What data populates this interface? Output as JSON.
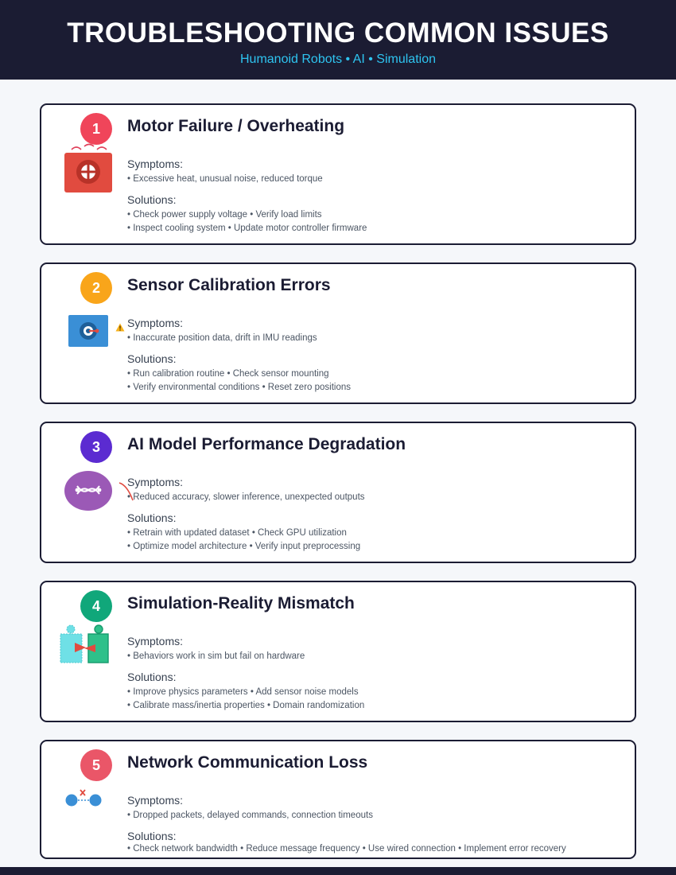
{
  "header": {
    "title": "TROUBLESHOOTING COMMON ISSUES",
    "subtitle": "Humanoid Robots • AI • Simulation"
  },
  "colors": {
    "header_bg": "#1b1c33",
    "subtitle": "#2ec4f0",
    "badge_1": "#f0455a",
    "badge_2": "#f9a51a",
    "badge_3": "#5b2bd1",
    "badge_4": "#10a77a",
    "badge_5": "#ea5668"
  },
  "issues": [
    {
      "number": "1",
      "title": "Motor Failure / Overheating",
      "icon": "motor-icon",
      "symptoms_label": "Symptoms:",
      "symptoms": "• Excessive heat, unusual noise, reduced torque",
      "solutions_label": "Solutions:",
      "solutions": [
        "• Check power supply voltage • Verify load limits",
        "• Inspect cooling system • Update motor controller firmware"
      ]
    },
    {
      "number": "2",
      "title": "Sensor Calibration Errors",
      "icon": "sensor-icon",
      "symptoms_label": "Symptoms:",
      "symptoms": "• Inaccurate position data, drift in IMU readings",
      "solutions_label": "Solutions:",
      "solutions": [
        "• Run calibration routine • Check sensor mounting",
        "• Verify environmental conditions • Reset zero positions"
      ]
    },
    {
      "number": "3",
      "title": "AI Model Performance Degradation",
      "icon": "neural-network-icon",
      "symptoms_label": "Symptoms:",
      "symptoms": "• Reduced accuracy, slower inference, unexpected outputs",
      "solutions_label": "Solutions:",
      "solutions": [
        "• Retrain with updated dataset • Check GPU utilization",
        "• Optimize model architecture • Verify input preprocessing"
      ]
    },
    {
      "number": "4",
      "title": "Simulation-Reality Mismatch",
      "icon": "sim-real-robot-icon",
      "symptoms_label": "Symptoms:",
      "symptoms": "• Behaviors work in sim but fail on hardware",
      "solutions_label": "Solutions:",
      "solutions": [
        "• Improve physics parameters • Add sensor noise models",
        "• Calibrate mass/inertia properties • Domain randomization"
      ]
    },
    {
      "number": "5",
      "title": "Network Communication Loss",
      "icon": "broken-link-icon",
      "symptoms_label": "Symptoms:",
      "symptoms": "• Dropped packets, delayed commands, connection timeouts",
      "solutions_label": "Solutions:",
      "solutions": [
        "• Check network bandwidth • Reduce message frequency • Use wired connection • Implement error recovery"
      ]
    }
  ]
}
